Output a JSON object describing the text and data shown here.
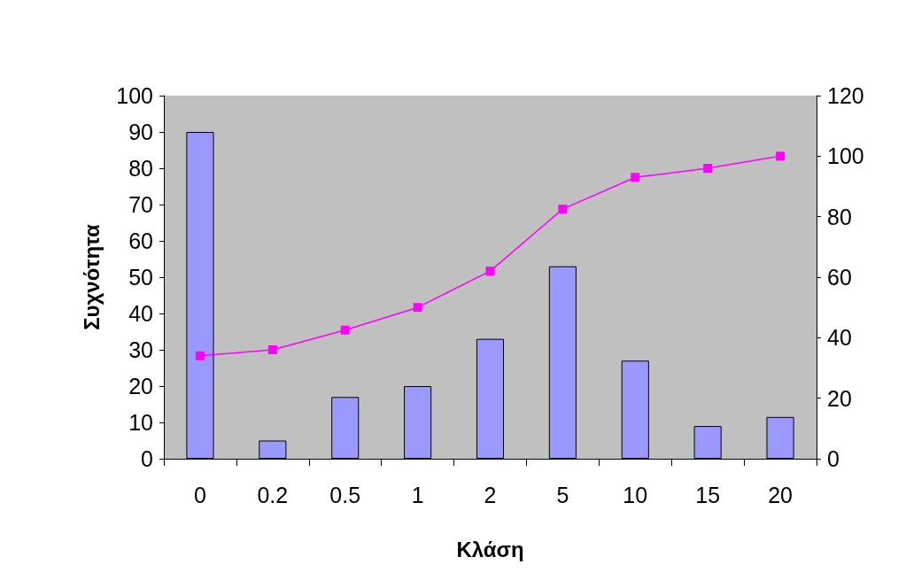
{
  "chart_data": {
    "type": "bar",
    "xlabel": "Κλάση",
    "ylabel": "Συχνότητα",
    "categories": [
      "0",
      "0.2",
      "0.5",
      "1",
      "2",
      "5",
      "10",
      "15",
      "20"
    ],
    "series": [
      {
        "color": "#9999ff",
        "values": [
          90,
          5,
          17,
          20,
          33,
          53,
          27,
          9,
          11.5
        ]
      },
      {
        "type": "line",
        "axis": "y2",
        "color": "#ff00ff",
        "marker": "square",
        "line_style": "solid",
        "values": [
          34,
          36,
          42.5,
          50,
          62,
          82.5,
          93,
          96,
          100
        ]
      }
    ],
    "ylim": [
      0,
      100
    ],
    "yticks": [
      0,
      10,
      20,
      30,
      40,
      50,
      60,
      70,
      80,
      90,
      100
    ],
    "y2lim": [
      0,
      120
    ],
    "y2ticks": [
      0,
      20,
      40,
      60,
      80,
      100,
      120
    ],
    "grid": false
  }
}
